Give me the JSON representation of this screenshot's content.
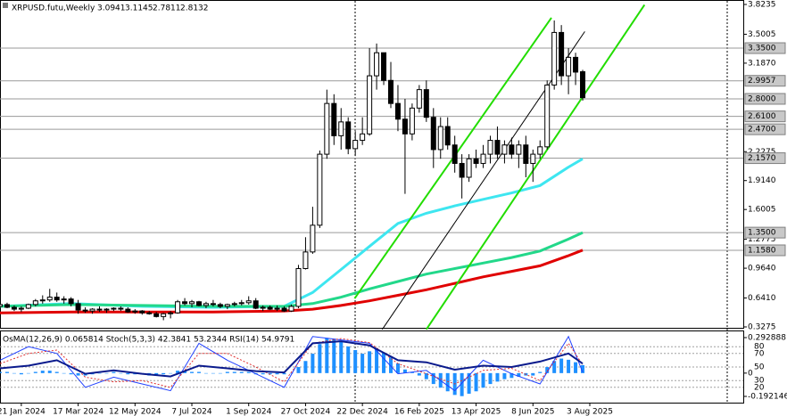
{
  "chart_data": {
    "type": "candlestick",
    "title": "XRPUSD.futu,Weekly",
    "ohlc": [
      [
        0.55,
        0.6,
        0.52,
        0.57
      ],
      [
        0.57,
        0.59,
        0.53,
        0.54
      ],
      [
        0.54,
        0.56,
        0.5,
        0.52
      ],
      [
        0.52,
        0.55,
        0.49,
        0.53
      ],
      [
        0.53,
        0.58,
        0.52,
        0.57
      ],
      [
        0.57,
        0.63,
        0.55,
        0.61
      ],
      [
        0.61,
        0.67,
        0.58,
        0.62
      ],
      [
        0.62,
        0.74,
        0.6,
        0.65
      ],
      [
        0.65,
        0.7,
        0.6,
        0.62
      ],
      [
        0.62,
        0.66,
        0.58,
        0.63
      ],
      [
        0.63,
        0.65,
        0.55,
        0.58
      ],
      [
        0.58,
        0.62,
        0.47,
        0.51
      ],
      [
        0.51,
        0.54,
        0.48,
        0.5
      ],
      [
        0.5,
        0.53,
        0.47,
        0.52
      ],
      [
        0.52,
        0.55,
        0.49,
        0.51
      ],
      [
        0.51,
        0.53,
        0.48,
        0.52
      ],
      [
        0.52,
        0.54,
        0.5,
        0.53
      ],
      [
        0.53,
        0.55,
        0.5,
        0.52
      ],
      [
        0.52,
        0.54,
        0.48,
        0.49
      ],
      [
        0.49,
        0.52,
        0.47,
        0.5
      ],
      [
        0.5,
        0.51,
        0.46,
        0.48
      ],
      [
        0.48,
        0.5,
        0.46,
        0.47
      ],
      [
        0.47,
        0.49,
        0.43,
        0.44
      ],
      [
        0.44,
        0.48,
        0.4,
        0.47
      ],
      [
        0.47,
        0.5,
        0.42,
        0.48
      ],
      [
        0.48,
        0.62,
        0.47,
        0.6
      ],
      [
        0.6,
        0.64,
        0.56,
        0.58
      ],
      [
        0.58,
        0.62,
        0.54,
        0.6
      ],
      [
        0.6,
        0.61,
        0.55,
        0.56
      ],
      [
        0.56,
        0.6,
        0.53,
        0.58
      ],
      [
        0.58,
        0.62,
        0.55,
        0.57
      ],
      [
        0.57,
        0.59,
        0.53,
        0.55
      ],
      [
        0.55,
        0.58,
        0.52,
        0.57
      ],
      [
        0.57,
        0.6,
        0.55,
        0.58
      ],
      [
        0.58,
        0.62,
        0.56,
        0.59
      ],
      [
        0.59,
        0.66,
        0.57,
        0.61
      ],
      [
        0.61,
        0.64,
        0.52,
        0.53
      ],
      [
        0.53,
        0.56,
        0.5,
        0.54
      ],
      [
        0.54,
        0.56,
        0.51,
        0.52
      ],
      [
        0.52,
        0.56,
        0.5,
        0.53
      ],
      [
        0.53,
        0.55,
        0.49,
        0.5
      ],
      [
        0.5,
        0.57,
        0.49,
        0.55
      ],
      [
        0.55,
        1.0,
        0.53,
        0.96
      ],
      [
        0.96,
        1.3,
        0.95,
        1.14
      ],
      [
        1.14,
        1.63,
        1.12,
        1.43
      ],
      [
        1.43,
        2.24,
        1.4,
        2.2
      ],
      [
        2.2,
        2.9,
        2.15,
        2.75
      ],
      [
        2.75,
        2.85,
        2.3,
        2.4
      ],
      [
        2.4,
        2.7,
        2.25,
        2.55
      ],
      [
        2.55,
        2.6,
        2.2,
        2.26
      ],
      [
        2.26,
        2.45,
        2.18,
        2.35
      ],
      [
        2.35,
        2.6,
        2.3,
        2.42
      ],
      [
        2.42,
        3.35,
        2.4,
        3.05
      ],
      [
        3.05,
        3.4,
        2.9,
        3.3
      ],
      [
        3.3,
        3.3,
        2.95,
        3.0
      ],
      [
        3.0,
        3.2,
        2.7,
        2.75
      ],
      [
        2.75,
        2.95,
        2.45,
        2.58
      ],
      [
        2.58,
        2.8,
        1.77,
        2.42
      ],
      [
        2.42,
        2.75,
        2.35,
        2.7
      ],
      [
        2.7,
        2.95,
        2.65,
        2.9
      ],
      [
        2.9,
        3.0,
        2.55,
        2.6
      ],
      [
        2.6,
        2.7,
        2.05,
        2.25
      ],
      [
        2.25,
        2.6,
        2.15,
        2.5
      ],
      [
        2.5,
        2.6,
        2.25,
        2.3
      ],
      [
        2.3,
        2.4,
        2.0,
        2.1
      ],
      [
        2.1,
        2.2,
        1.72,
        1.95
      ],
      [
        1.95,
        2.2,
        1.9,
        2.15
      ],
      [
        2.15,
        2.25,
        2.05,
        2.1
      ],
      [
        2.1,
        2.3,
        2.05,
        2.2
      ],
      [
        2.2,
        2.4,
        2.1,
        2.35
      ],
      [
        2.35,
        2.5,
        2.15,
        2.2
      ],
      [
        2.2,
        2.35,
        2.1,
        2.3
      ],
      [
        2.3,
        2.38,
        2.15,
        2.2
      ],
      [
        2.2,
        2.35,
        2.05,
        2.3
      ],
      [
        2.3,
        2.4,
        1.95,
        2.1
      ],
      [
        2.1,
        2.25,
        1.9,
        2.2
      ],
      [
        2.2,
        2.35,
        2.15,
        2.28
      ],
      [
        2.28,
        3.0,
        2.25,
        2.95
      ],
      [
        2.95,
        3.65,
        2.9,
        3.52
      ],
      [
        3.52,
        3.6,
        2.95,
        3.05
      ],
      [
        3.05,
        3.35,
        2.85,
        3.25
      ],
      [
        3.25,
        3.3,
        2.95,
        3.09
      ],
      [
        3.0941,
        3.1145,
        2.7811,
        2.8132
      ]
    ],
    "xlim": [
      0,
      104.6
    ],
    "xticks": [
      {
        "value": 3,
        "label": "21 Jan 2024"
      },
      {
        "value": 11,
        "label": "17 Mar 2024"
      },
      {
        "value": 19,
        "label": "12 May 2024"
      },
      {
        "value": 27,
        "label": "7 Jul 2024"
      },
      {
        "value": 35,
        "label": "1 Sep 2024"
      },
      {
        "value": 43,
        "label": "27 Oct 2024"
      },
      {
        "value": 51,
        "label": "22 Dec 2024"
      },
      {
        "value": 59,
        "label": "16 Feb 2025"
      },
      {
        "value": 67,
        "label": "13 Apr 2025"
      },
      {
        "value": 75,
        "label": "8 Jun 2025"
      },
      {
        "value": 83,
        "label": "3 Aug 2025"
      }
    ],
    "ylim": [
      0.3177,
      3.8718
    ],
    "yticks": [
      3.8235,
      3.5005,
      {
        "value": 3.187,
        "label": "3.1870"
      },
      2.2275,
      {
        "value": 1.914,
        "label": "1.9140"
      },
      1.6005,
      1.2775,
      {
        "value": 0.964,
        "label": "0.9640"
      },
      {
        "value": 0.641,
        "label": "0.6410"
      },
      0.3275
    ],
    "levels": [
      {
        "value": 3.35,
        "label": "3.3500"
      },
      2.9957,
      {
        "value": 2.8,
        "label": "2.8000"
      },
      {
        "value": 2.61,
        "label": "2.6100"
      },
      {
        "value": 2.47,
        "label": "2.4700"
      },
      {
        "value": 2.157,
        "label": "2.1570"
      },
      {
        "value": 1.35,
        "label": "1.3500"
      },
      {
        "value": 1.158,
        "label": "1.1580"
      }
    ],
    "level_color": "#9a9a9a",
    "up_color": "#ffffff",
    "down_color": "#000000",
    "series": [
      {
        "color": "#3ee6f0",
        "x": [
          0,
          10,
          20,
          30,
          40,
          44,
          48,
          52,
          56,
          60,
          64,
          68,
          72,
          76,
          80,
          82
        ],
        "values": [
          0.55,
          0.58,
          0.55,
          0.54,
          0.55,
          0.7,
          0.95,
          1.2,
          1.45,
          1.56,
          1.64,
          1.71,
          1.78,
          1.86,
          2.06,
          2.15
        ]
      },
      {
        "color": "#22d88a",
        "x": [
          0,
          10,
          20,
          30,
          40,
          44,
          48,
          52,
          56,
          60,
          64,
          68,
          72,
          76,
          80,
          82
        ],
        "values": [
          0.55,
          0.57,
          0.56,
          0.55,
          0.55,
          0.58,
          0.65,
          0.74,
          0.82,
          0.9,
          0.96,
          1.02,
          1.08,
          1.15,
          1.28,
          1.35
        ]
      },
      {
        "color": "#e00000",
        "x": [
          0,
          10,
          20,
          30,
          40,
          44,
          48,
          52,
          56,
          60,
          64,
          68,
          72,
          76,
          80,
          82
        ],
        "values": [
          0.48,
          0.49,
          0.49,
          0.49,
          0.5,
          0.52,
          0.56,
          0.61,
          0.67,
          0.73,
          0.8,
          0.87,
          0.93,
          0.99,
          1.1,
          1.16
        ]
      }
    ],
    "trendlines": [
      {
        "color": "#22dd00",
        "x": [
          49.9,
          77.6
        ],
        "values": [
          0.635,
          3.68
        ]
      },
      {
        "color": "#000000",
        "x": [
          53.8,
          82.3
        ],
        "values": [
          0.3,
          3.53
        ]
      },
      {
        "color": "#22dd00",
        "x": [
          60,
          90.7
        ],
        "values": [
          0.3,
          3.82
        ]
      }
    ],
    "indicators": {
      "header": "OsMA(12,26,9) 0.065814  Stoch(5,3,3) 42.3841 53.2344  RSI(14) 54.9791",
      "osma": {
        "color": "#1e90ff",
        "ylim": [
          -0.192146,
          0.292888
        ],
        "yticks": [
          0.292888,
          0,
          -0.192146
        ],
        "values": [
          0.01,
          0.01,
          0,
          -0.01,
          0,
          0.01,
          0.02,
          0.02,
          0.01,
          0,
          -0.01,
          -0.02,
          -0.02,
          -0.01,
          0,
          0,
          0.01,
          0,
          -0.01,
          -0.01,
          -0.01,
          -0.02,
          -0.02,
          -0.01,
          0,
          0.02,
          0.02,
          0.01,
          0.01,
          0,
          0,
          0,
          0.01,
          0.01,
          0.01,
          0.01,
          -0.01,
          -0.01,
          -0.01,
          -0.01,
          -0.01,
          0,
          0.05,
          0.1,
          0.16,
          0.24,
          0.29,
          0.28,
          0.26,
          0.22,
          0.19,
          0.16,
          0.18,
          0.2,
          0.17,
          0.13,
          0.08,
          0.03,
          0.01,
          -0.02,
          -0.05,
          -0.09,
          -0.12,
          -0.15,
          -0.18,
          -0.19,
          -0.17,
          -0.15,
          -0.12,
          -0.09,
          -0.07,
          -0.05,
          -0.04,
          -0.03,
          -0.02,
          -0.02,
          0.01,
          0.05,
          0.1,
          0.12,
          0.11,
          0.09,
          0.065814
        ]
      },
      "ylim": [
        0,
        100
      ],
      "levels": [
        80,
        70,
        50,
        30,
        20
      ],
      "lines": [
        {
          "color": "#2040ff",
          "width": 1,
          "dash": false,
          "x": [
            0,
            4,
            8,
            12,
            16,
            20,
            24,
            28,
            32,
            36,
            40,
            44,
            48,
            52,
            56,
            60,
            64,
            68,
            72,
            76,
            80,
            82
          ],
          "values": [
            60,
            80,
            70,
            20,
            35,
            25,
            15,
            85,
            60,
            40,
            20,
            95,
            90,
            85,
            40,
            45,
            15,
            60,
            40,
            25,
            95,
            42.3841
          ]
        },
        {
          "color": "#e03030",
          "width": 1,
          "dash": true,
          "x": [
            0,
            4,
            8,
            12,
            16,
            20,
            24,
            28,
            32,
            36,
            40,
            44,
            48,
            52,
            56,
            60,
            64,
            68,
            72,
            76,
            80,
            82
          ],
          "values": [
            55,
            70,
            75,
            35,
            28,
            30,
            20,
            70,
            70,
            50,
            28,
            85,
            92,
            86,
            55,
            40,
            25,
            45,
            48,
            30,
            85,
            53.2344
          ]
        },
        {
          "color": "#0a1a8c",
          "width": 2,
          "dash": false,
          "x": [
            0,
            4,
            8,
            12,
            16,
            20,
            24,
            28,
            32,
            36,
            40,
            44,
            48,
            52,
            56,
            60,
            64,
            68,
            72,
            76,
            80,
            82
          ],
          "values": [
            48,
            52,
            60,
            40,
            45,
            40,
            36,
            52,
            48,
            44,
            42,
            85,
            88,
            82,
            60,
            57,
            46,
            52,
            50,
            58,
            70,
            54.9791
          ]
        }
      ]
    }
  }
}
